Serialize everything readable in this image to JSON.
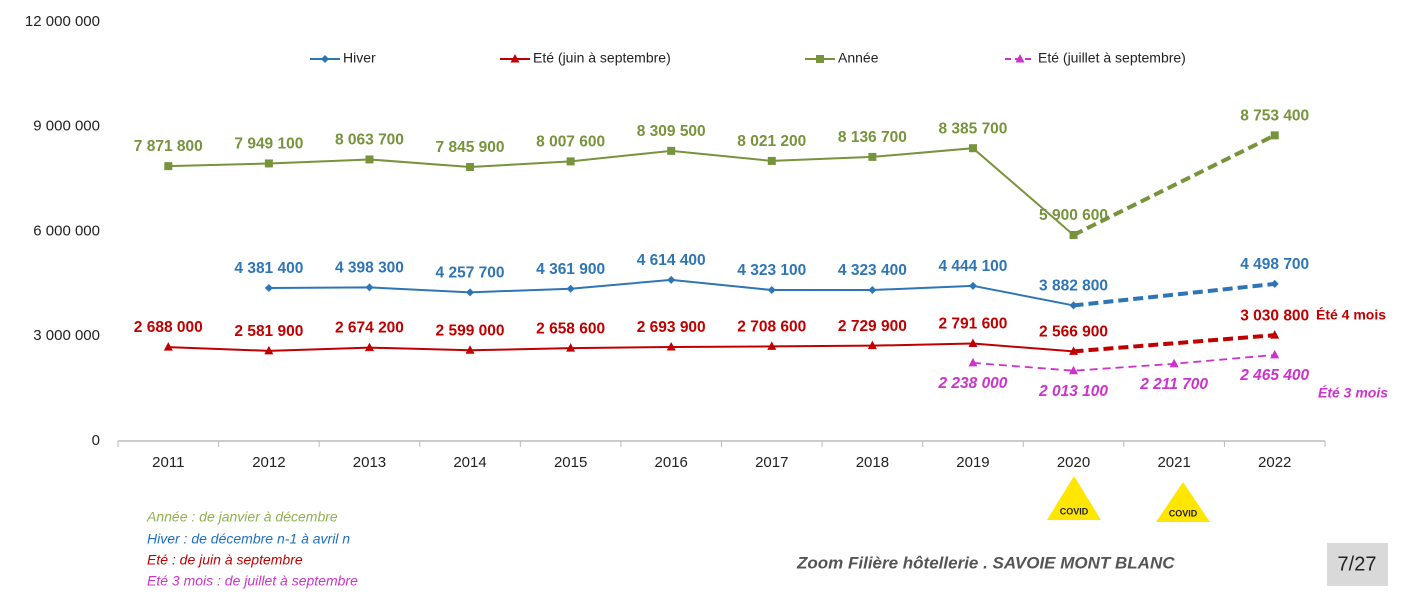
{
  "chart_data": {
    "type": "line",
    "categories": [
      "2011",
      "2012",
      "2013",
      "2014",
      "2015",
      "2016",
      "2017",
      "2018",
      "2019",
      "2020",
      "2021",
      "2022"
    ],
    "ylim": [
      0,
      12000000
    ],
    "yticks": [
      {
        "value": 0,
        "label": "0"
      },
      {
        "value": 3000000,
        "label": "3 000 000"
      },
      {
        "value": 6000000,
        "label": "6 000 000"
      },
      {
        "value": 9000000,
        "label": "9 000 000"
      },
      {
        "value": 12000000,
        "label": "12 000 000"
      }
    ],
    "grid": false,
    "legend": "top",
    "series": [
      {
        "name": "Hiver",
        "color": "#2e75b6",
        "marker": "diamond",
        "values": [
          null,
          4381400,
          4398300,
          4257700,
          4361900,
          4614400,
          4323100,
          4323400,
          4444100,
          3882800,
          null,
          4498700
        ],
        "value_labels": [
          null,
          "4 381 400",
          "4 398 300",
          "4 257 700",
          "4 361 900",
          "4 614 400",
          "4 323 100",
          "4 323 400",
          "4 444 100",
          "3 882 800",
          null,
          "4 498 700"
        ]
      },
      {
        "name": "Eté (juin à septembre)",
        "color": "#c00000",
        "marker": "triangle",
        "values": [
          2688000,
          2581900,
          2674200,
          2599000,
          2658600,
          2693900,
          2708600,
          2729900,
          2791600,
          2566900,
          null,
          3030800
        ],
        "value_labels": [
          "2 688 000",
          "2 581 900",
          "2 674 200",
          "2 599 000",
          "2 658 600",
          "2 693 900",
          "2 708 600",
          "2 729 900",
          "2 791 600",
          "2 566 900",
          null,
          "3 030 800"
        ]
      },
      {
        "name": "Année",
        "color": "#77933c",
        "marker": "square",
        "values": [
          7871800,
          7949100,
          8063700,
          7845900,
          8007600,
          8309500,
          8021200,
          8136700,
          8385700,
          5900600,
          null,
          8753400
        ],
        "value_labels": [
          "7 871 800",
          "7 949 100",
          "8 063 700",
          "7 845 900",
          "8 007 600",
          "8 309 500",
          "8 021 200",
          "8 136 700",
          "8 385 700",
          "5 900 600",
          null,
          "8 753 400"
        ]
      },
      {
        "name": "Eté (juillet à septembre)",
        "color": "#cc33cc",
        "marker": "triangle",
        "style": "dashed",
        "values": [
          null,
          null,
          null,
          null,
          null,
          null,
          null,
          null,
          2238000,
          2013100,
          2211700,
          2465400
        ],
        "value_labels": [
          null,
          null,
          null,
          null,
          null,
          null,
          null,
          null,
          "2 238 000",
          "2 013 100",
          "2 211 700",
          "2 465 400"
        ]
      }
    ],
    "annotations": [
      "Été 4 mois",
      "Été 3 mois",
      "COVID",
      "COVID"
    ]
  },
  "notes": [
    "Année : de janvier à décembre",
    "Hiver : de décembre  n-1 à avril n",
    "Eté : de juin à septembre",
    "Eté 3 mois  : de juillet à septembre"
  ],
  "footer": {
    "title": "Zoom Filière hôtellerie . SAVOIE MONT BLANC",
    "page": "7/27"
  }
}
